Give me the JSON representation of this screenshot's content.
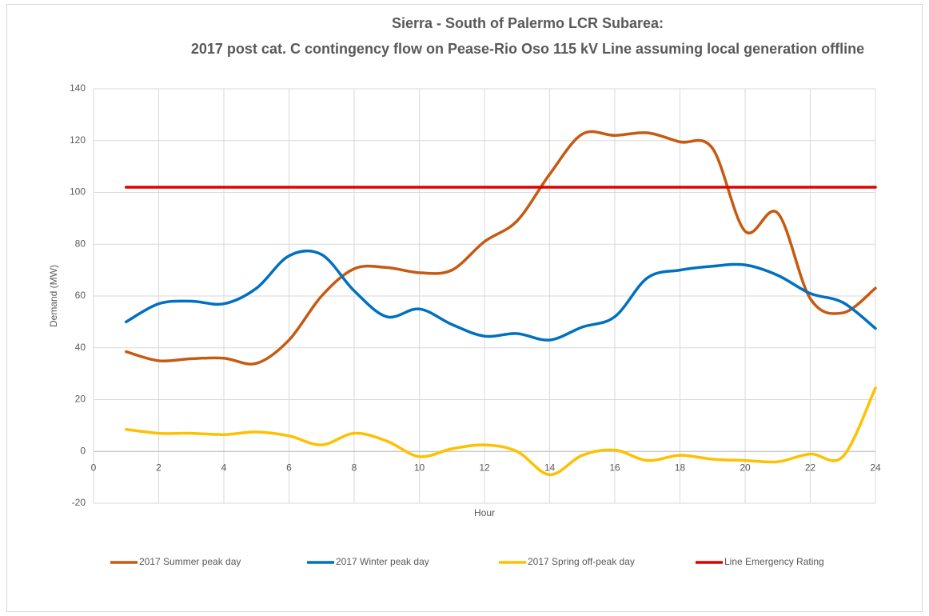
{
  "chart_data": {
    "type": "line",
    "title": "Sierra - South of Palermo LCR Subarea:",
    "subtitle": "2017 post cat. C contingency flow on Pease-Rio Oso 115 kV Line assuming local generation offline",
    "x_label": "Hour",
    "y_label": "Demand (MW)",
    "x": [
      1,
      2,
      3,
      4,
      5,
      6,
      7,
      8,
      9,
      10,
      11,
      12,
      13,
      14,
      15,
      16,
      17,
      18,
      19,
      20,
      21,
      22,
      23,
      24
    ],
    "series": [
      {
        "name": "2017 Summer peak day",
        "color": "#c55a11",
        "values": [
          38.5,
          35,
          35.8,
          36,
          34,
          43,
          60,
          70.5,
          71,
          69,
          70,
          81,
          89,
          107,
          122.5,
          122,
          123,
          119.5,
          117,
          85,
          92,
          59,
          53.5,
          63
        ]
      },
      {
        "name": "2017 Winter peak day",
        "color": "#0070c0",
        "values": [
          50,
          57,
          58,
          57,
          63,
          75.5,
          76,
          62,
          52,
          55,
          49,
          44.5,
          45.5,
          43,
          48,
          52,
          67,
          70,
          71.5,
          72,
          68,
          61,
          57.5,
          47.5
        ]
      },
      {
        "name": "2017 Spring off-peak day",
        "color": "#ffc000",
        "values": [
          8.5,
          7,
          7,
          6.5,
          7.5,
          6,
          2.5,
          7,
          4,
          -2,
          1,
          2.5,
          0,
          -9,
          -1.5,
          0.5,
          -3.5,
          -1.5,
          -3,
          -3.5,
          -4,
          -1,
          -2,
          24.5
        ]
      },
      {
        "name": "Line Emergency Rating",
        "color": "#e00000",
        "values": [
          102,
          102,
          102,
          102,
          102,
          102,
          102,
          102,
          102,
          102,
          102,
          102,
          102,
          102,
          102,
          102,
          102,
          102,
          102,
          102,
          102,
          102,
          102,
          102
        ]
      }
    ],
    "xlim": [
      0,
      24
    ],
    "xticks": [
      0,
      2,
      4,
      6,
      8,
      10,
      12,
      14,
      16,
      18,
      20,
      22,
      24
    ],
    "ylim": [
      -20,
      140
    ],
    "yticks": [
      -20,
      0,
      20,
      40,
      60,
      80,
      100,
      120,
      140
    ],
    "grid": true,
    "legend": "bottom"
  }
}
